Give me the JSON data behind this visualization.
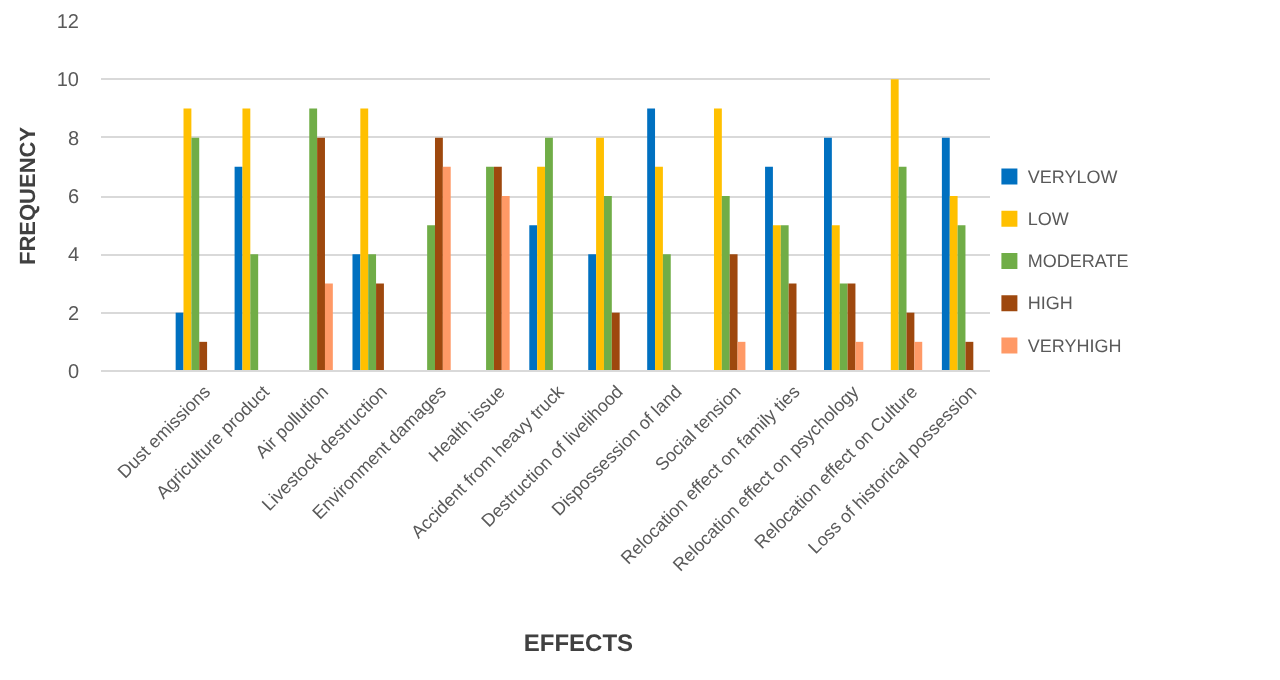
{
  "chart_data": {
    "type": "bar",
    "xlabel": "EFFECTS",
    "ylabel": "FREQUENCY",
    "categories": [
      "Dust emissions",
      "Agriculture product",
      "Air pollution",
      "Livestock destruction",
      "Environment damages",
      "Health issue",
      "Accident from heavy truck",
      "Destruction of livelihood",
      "Dispossession of land",
      "Social tension",
      "Relocation effect on family ties",
      "Relocation effect on psychology",
      "Relocation effect on Culture",
      "Loss of historical possession"
    ],
    "series": [
      {
        "name": "VERYLOW",
        "color": "#0070c0",
        "values": [
          2,
          7,
          null,
          4,
          null,
          null,
          5,
          4,
          9,
          null,
          7,
          8,
          null,
          8
        ]
      },
      {
        "name": "LOW",
        "color": "#ffc000",
        "values": [
          9,
          9,
          null,
          9,
          null,
          null,
          7,
          8,
          7,
          9,
          5,
          5,
          10,
          6
        ]
      },
      {
        "name": "MODERATE",
        "color": "#70ad47",
        "values": [
          8,
          4,
          9,
          4,
          5,
          7,
          8,
          6,
          4,
          6,
          5,
          3,
          7,
          5
        ]
      },
      {
        "name": "HIGH",
        "color": "#9e480e",
        "values": [
          1,
          null,
          8,
          3,
          8,
          7,
          null,
          2,
          null,
          4,
          3,
          3,
          2,
          1
        ]
      },
      {
        "name": "VERYHIGH",
        "color": "#ff9966",
        "values": [
          null,
          null,
          3,
          null,
          7,
          6,
          null,
          null,
          null,
          1,
          null,
          1,
          1,
          null
        ]
      }
    ],
    "ylim": [
      0,
      12
    ],
    "yticks": [
      0,
      2,
      4,
      6,
      8,
      10,
      12
    ],
    "grid": "y",
    "legend": "right"
  }
}
